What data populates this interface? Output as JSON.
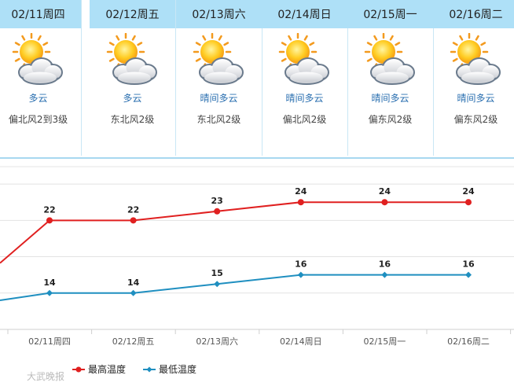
{
  "forecast": [
    {
      "date": "02/11周四",
      "condition": "多云",
      "wind": "偏北风2到3级",
      "icon": "sun-cloud-icon"
    },
    {
      "date": "02/12周五",
      "condition": "多云",
      "wind": "东北风2级",
      "icon": "sun-cloud-icon"
    },
    {
      "date": "02/13周六",
      "condition": "晴间多云",
      "wind": "东北风2级",
      "icon": "sun-cloud-icon"
    },
    {
      "date": "02/14周日",
      "condition": "晴间多云",
      "wind": "偏北风2级",
      "icon": "sun-cloud-icon"
    },
    {
      "date": "02/15周一",
      "condition": "晴间多云",
      "wind": "偏东风2级",
      "icon": "sun-cloud-icon"
    },
    {
      "date": "02/16周二",
      "condition": "晴间多云",
      "wind": "偏东风2级",
      "icon": "sun-cloud-icon"
    }
  ],
  "chart_data": {
    "type": "line",
    "categories": [
      "02/11周四",
      "02/12周五",
      "02/13周六",
      "02/14周日",
      "02/15周一",
      "02/16周二"
    ],
    "series": [
      {
        "name": "最高温度",
        "values": [
          22,
          22,
          23,
          24,
          24,
          24
        ],
        "color": "#e02020"
      },
      {
        "name": "最低温度",
        "values": [
          14,
          14,
          15,
          16,
          16,
          16
        ],
        "color": "#1f8fc0"
      }
    ],
    "ylim": [
      10,
      28
    ],
    "grid": true,
    "legend": "bottom-center"
  },
  "watermark": "大武晚报"
}
